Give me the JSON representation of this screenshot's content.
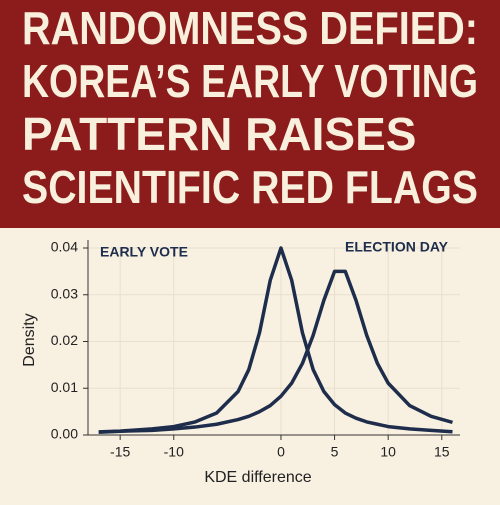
{
  "chart_data": {
    "type": "line",
    "title": [
      "RANDOMNESS DEFIED:",
      "KOREA’S EARLY VOTING",
      "PATTERN RAISES",
      "SCIENTIFIC RED FLAGS"
    ],
    "x_label": "KDE difference",
    "y_label": "Density",
    "x": [
      -17,
      -15,
      -12,
      -10,
      -8,
      -6,
      -4,
      -3,
      -2,
      -1,
      0,
      1,
      2,
      3,
      4,
      5,
      6,
      7,
      8,
      9,
      10,
      12,
      14,
      16
    ],
    "series": [
      {
        "name": "EARLY VOTE",
        "color": "#1d2d4b",
        "values": [
          0.00066,
          0.00084,
          0.0013,
          0.0018,
          0.0028,
          0.0047,
          0.0093,
          0.014,
          0.0219,
          0.0331,
          0.04,
          0.0331,
          0.0219,
          0.014,
          0.0093,
          0.0065,
          0.0047,
          0.0036,
          0.0028,
          0.0023,
          0.0018,
          0.0013,
          0.001,
          0.0007
        ]
      },
      {
        "name": "ELECTION DAY",
        "color": "#1d2d4b",
        "values": [
          0.0006,
          0.0008,
          0.001,
          0.0013,
          0.0017,
          0.0023,
          0.0033,
          0.004,
          0.005,
          0.0063,
          0.0083,
          0.0111,
          0.0153,
          0.0213,
          0.0288,
          0.035,
          0.035,
          0.0288,
          0.0213,
          0.0153,
          0.0111,
          0.0063,
          0.004,
          0.0027
        ]
      }
    ],
    "xlim": [
      -18,
      16.7
    ],
    "xticks": [
      -15,
      -10,
      0,
      5,
      10,
      15
    ],
    "ylim": [
      0,
      0.04
    ],
    "yticks": [
      {
        "value": 0,
        "label": "0.00"
      },
      {
        "value": 0.01,
        "label": "0.01"
      },
      {
        "value": 0.02,
        "label": "0.02"
      },
      {
        "value": 0.03,
        "label": "0.03"
      },
      {
        "value": 0.04,
        "label": "0.04"
      }
    ],
    "grid": true
  }
}
